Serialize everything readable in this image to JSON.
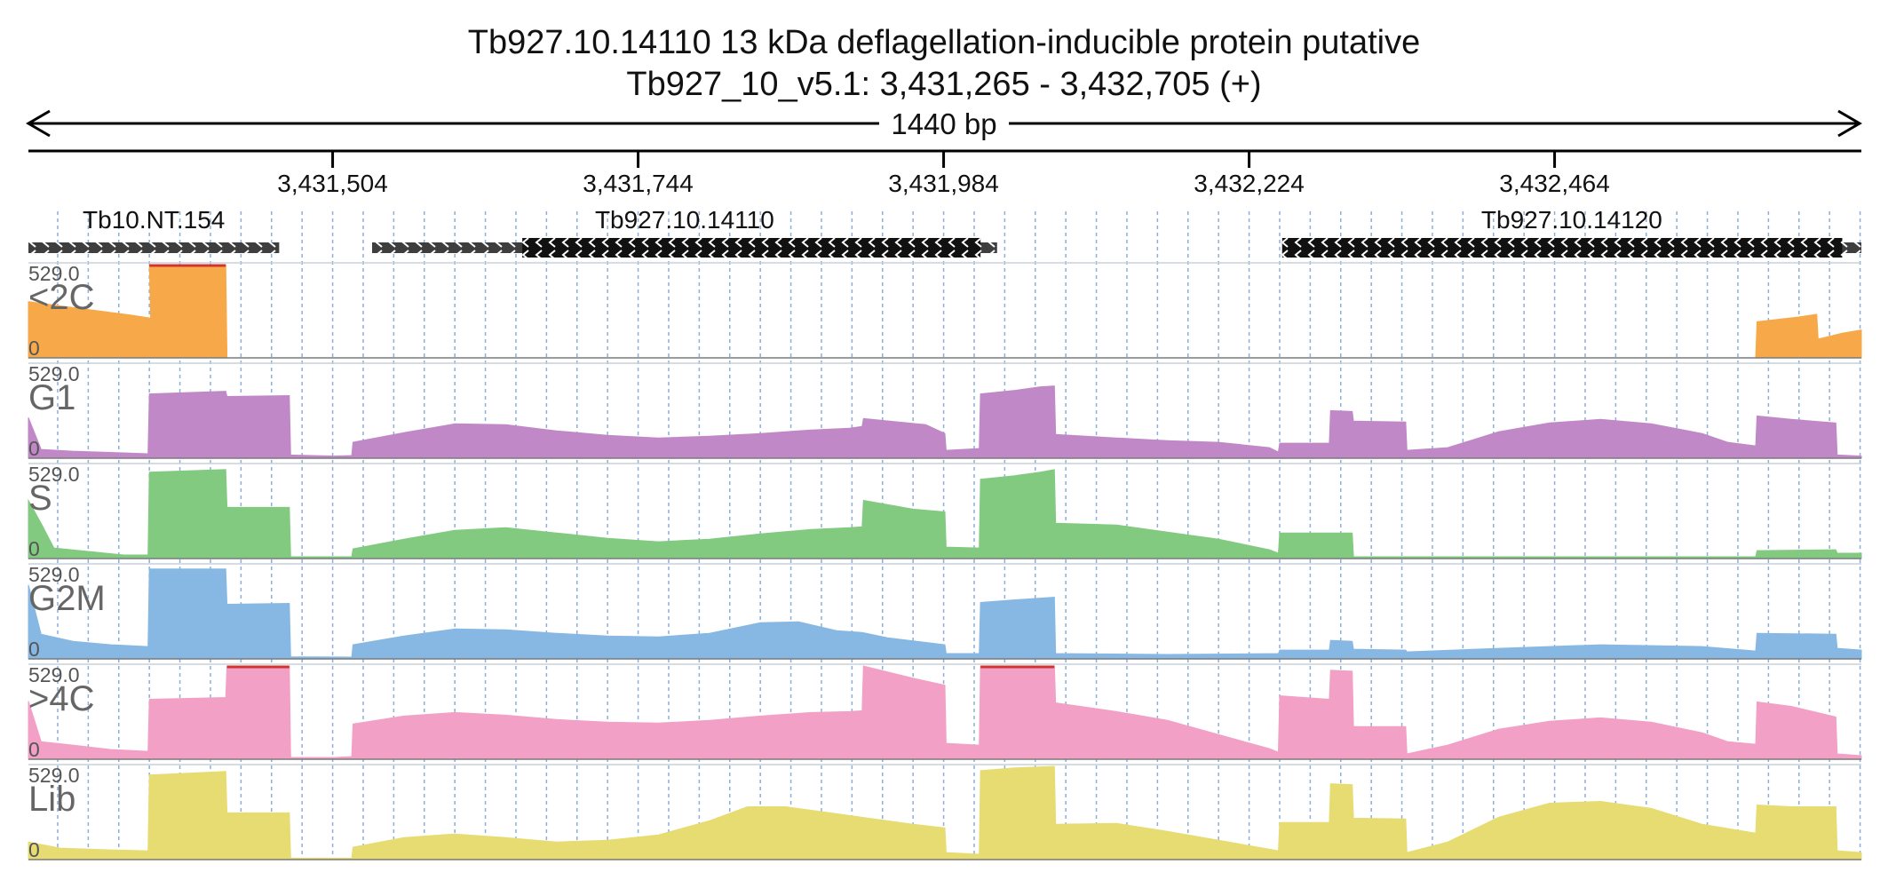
{
  "header": {
    "title": "Tb927.10.14110  13 kDa deflagellation-inducible protein  putative",
    "locus": "Tb927_10_v5.1: 3,431,265 - 3,432,705 (+)",
    "span_label": "1440 bp"
  },
  "chart_data": {
    "type": "area",
    "region": {
      "chromosome": "Tb927_10_v5.1",
      "start": 3431265,
      "end": 3432705,
      "strand": "+"
    },
    "xlim": [
      3431265,
      3432705
    ],
    "ruler_ticks": [
      {
        "position": 3431504,
        "label": "3,431,504"
      },
      {
        "position": 3431744,
        "label": "3,431,744"
      },
      {
        "position": 3431984,
        "label": "3,431,984"
      },
      {
        "position": 3432224,
        "label": "3,432,224"
      },
      {
        "position": 3432464,
        "label": "3,432,464"
      }
    ],
    "grid": true,
    "genes": [
      {
        "name": "Tb10.NT.154",
        "start": 3431265,
        "end": 3431462,
        "strand": "-",
        "thick": [],
        "style": "ncRNA"
      },
      {
        "name": "Tb927.10.14110",
        "start": 3431535,
        "end": 3432026,
        "strand": "-",
        "thick": [
          3431653,
          3432013
        ],
        "style": "coding"
      },
      {
        "name": "Tb927.10.14120",
        "start": 3432250,
        "end": 3432705,
        "strand": "-",
        "thick": [
          3432250,
          3432690
        ],
        "style": "coding"
      }
    ],
    "tracks": [
      {
        "name": "<2C",
        "color": "#f7a94a",
        "max_label": "529.0",
        "min_label": "0",
        "ylim": [
          0,
          529
        ],
        "points": [
          [
            3431265,
            319
          ],
          [
            3431285,
            300
          ],
          [
            3431305,
            281
          ],
          [
            3431325,
            262
          ],
          [
            3431345,
            243
          ],
          [
            3431361,
            225
          ],
          [
            3431360,
            529
          ],
          [
            3431420,
            529
          ],
          [
            3431421,
            0
          ],
          [
            3432622,
            0
          ],
          [
            3432623,
            205
          ],
          [
            3432655,
            231
          ],
          [
            3432670,
            247
          ],
          [
            3432671,
            107
          ],
          [
            3432690,
            140
          ],
          [
            3432705,
            158
          ]
        ]
      },
      {
        "name": "G1",
        "color": "#c188c8",
        "max_label": "529.0",
        "min_label": "0",
        "ylim": [
          0,
          529
        ],
        "points": [
          [
            3431265,
            230
          ],
          [
            3431275,
            50
          ],
          [
            3431300,
            40
          ],
          [
            3431340,
            30
          ],
          [
            3431359,
            25
          ],
          [
            3431360,
            365
          ],
          [
            3431420,
            380
          ],
          [
            3431421,
            350
          ],
          [
            3431470,
            355
          ],
          [
            3431471,
            18
          ],
          [
            3431505,
            12
          ],
          [
            3431519,
            15
          ],
          [
            3431520,
            90
          ],
          [
            3431560,
            145
          ],
          [
            3431600,
            195
          ],
          [
            3431640,
            190
          ],
          [
            3431680,
            155
          ],
          [
            3431720,
            130
          ],
          [
            3431760,
            115
          ],
          [
            3431800,
            125
          ],
          [
            3431840,
            140
          ],
          [
            3431880,
            160
          ],
          [
            3431910,
            170
          ],
          [
            3431920,
            180
          ],
          [
            3431921,
            225
          ],
          [
            3431970,
            190
          ],
          [
            3431985,
            140
          ],
          [
            3431986,
            45
          ],
          [
            3432012,
            55
          ],
          [
            3432013,
            365
          ],
          [
            3432040,
            385
          ],
          [
            3432060,
            405
          ],
          [
            3432071,
            410
          ],
          [
            3432072,
            135
          ],
          [
            3432120,
            115
          ],
          [
            3432160,
            100
          ],
          [
            3432200,
            90
          ],
          [
            3432240,
            60
          ],
          [
            3432247,
            35
          ],
          [
            3432248,
            85
          ],
          [
            3432287,
            85
          ],
          [
            3432288,
            270
          ],
          [
            3432305,
            265
          ],
          [
            3432306,
            210
          ],
          [
            3432347,
            205
          ],
          [
            3432348,
            45
          ],
          [
            3432380,
            60
          ],
          [
            3432420,
            150
          ],
          [
            3432460,
            200
          ],
          [
            3432500,
            220
          ],
          [
            3432540,
            195
          ],
          [
            3432580,
            140
          ],
          [
            3432600,
            90
          ],
          [
            3432622,
            70
          ],
          [
            3432623,
            240
          ],
          [
            3432650,
            220
          ],
          [
            3432685,
            200
          ],
          [
            3432686,
            18
          ],
          [
            3432705,
            12
          ]
        ]
      },
      {
        "name": "S",
        "color": "#82ca80",
        "max_label": "529.0",
        "min_label": "0",
        "ylim": [
          0,
          529
        ],
        "points": [
          [
            3431265,
            330
          ],
          [
            3431275,
            200
          ],
          [
            3431285,
            60
          ],
          [
            3431340,
            20
          ],
          [
            3431359,
            20
          ],
          [
            3431360,
            490
          ],
          [
            3431420,
            505
          ],
          [
            3431421,
            290
          ],
          [
            3431470,
            290
          ],
          [
            3431471,
            10
          ],
          [
            3431519,
            10
          ],
          [
            3431520,
            55
          ],
          [
            3431560,
            110
          ],
          [
            3431600,
            160
          ],
          [
            3431640,
            175
          ],
          [
            3431680,
            145
          ],
          [
            3431720,
            115
          ],
          [
            3431760,
            95
          ],
          [
            3431800,
            110
          ],
          [
            3431840,
            140
          ],
          [
            3431880,
            165
          ],
          [
            3431910,
            175
          ],
          [
            3431920,
            180
          ],
          [
            3431921,
            330
          ],
          [
            3431960,
            280
          ],
          [
            3431985,
            265
          ],
          [
            3431986,
            65
          ],
          [
            3432012,
            60
          ],
          [
            3432013,
            450
          ],
          [
            3432040,
            470
          ],
          [
            3432060,
            490
          ],
          [
            3432071,
            505
          ],
          [
            3432072,
            200
          ],
          [
            3432120,
            190
          ],
          [
            3432160,
            150
          ],
          [
            3432200,
            110
          ],
          [
            3432240,
            50
          ],
          [
            3432247,
            30
          ],
          [
            3432248,
            145
          ],
          [
            3432305,
            145
          ],
          [
            3432306,
            10
          ],
          [
            3432622,
            10
          ],
          [
            3432623,
            45
          ],
          [
            3432685,
            50
          ],
          [
            3432686,
            30
          ],
          [
            3432705,
            30
          ]
        ]
      },
      {
        "name": "G2M",
        "color": "#86b8e3",
        "max_label": "529.0",
        "min_label": "0",
        "ylim": [
          0,
          529
        ],
        "points": [
          [
            3431265,
            420
          ],
          [
            3431275,
            140
          ],
          [
            3431300,
            100
          ],
          [
            3431330,
            80
          ],
          [
            3431359,
            70
          ],
          [
            3431360,
            510
          ],
          [
            3431420,
            510
          ],
          [
            3431421,
            310
          ],
          [
            3431470,
            315
          ],
          [
            3431471,
            12
          ],
          [
            3431519,
            10
          ],
          [
            3431520,
            80
          ],
          [
            3431560,
            130
          ],
          [
            3431600,
            170
          ],
          [
            3431640,
            165
          ],
          [
            3431680,
            145
          ],
          [
            3431720,
            130
          ],
          [
            3431760,
            125
          ],
          [
            3431800,
            145
          ],
          [
            3431840,
            205
          ],
          [
            3431870,
            210
          ],
          [
            3431900,
            160
          ],
          [
            3431920,
            150
          ],
          [
            3431940,
            120
          ],
          [
            3431985,
            80
          ],
          [
            3431986,
            30
          ],
          [
            3432012,
            30
          ],
          [
            3432013,
            320
          ],
          [
            3432040,
            335
          ],
          [
            3432071,
            350
          ],
          [
            3432072,
            30
          ],
          [
            3432160,
            25
          ],
          [
            3432247,
            30
          ],
          [
            3432248,
            50
          ],
          [
            3432287,
            50
          ],
          [
            3432288,
            105
          ],
          [
            3432305,
            100
          ],
          [
            3432306,
            55
          ],
          [
            3432347,
            50
          ],
          [
            3432348,
            40
          ],
          [
            3432420,
            60
          ],
          [
            3432500,
            80
          ],
          [
            3432580,
            70
          ],
          [
            3432622,
            45
          ],
          [
            3432623,
            145
          ],
          [
            3432685,
            140
          ],
          [
            3432686,
            60
          ],
          [
            3432705,
            50
          ]
        ]
      },
      {
        "name": ">4C",
        "color": "#f2a0c6",
        "max_label": "529.0",
        "min_label": "0",
        "ylim": [
          0,
          529
        ],
        "points": [
          [
            3431265,
            330
          ],
          [
            3431275,
            100
          ],
          [
            3431300,
            80
          ],
          [
            3431330,
            55
          ],
          [
            3431359,
            45
          ],
          [
            3431360,
            340
          ],
          [
            3431420,
            350
          ],
          [
            3431421,
            529
          ],
          [
            3431470,
            529
          ],
          [
            3431471,
            10
          ],
          [
            3431505,
            10
          ],
          [
            3431519,
            15
          ],
          [
            3431520,
            200
          ],
          [
            3431560,
            245
          ],
          [
            3431600,
            265
          ],
          [
            3431640,
            250
          ],
          [
            3431680,
            225
          ],
          [
            3431720,
            210
          ],
          [
            3431760,
            205
          ],
          [
            3431800,
            220
          ],
          [
            3431840,
            245
          ],
          [
            3431880,
            265
          ],
          [
            3431910,
            270
          ],
          [
            3431920,
            275
          ],
          [
            3431921,
            529
          ],
          [
            3431960,
            460
          ],
          [
            3431985,
            420
          ],
          [
            3431986,
            90
          ],
          [
            3432012,
            80
          ],
          [
            3432013,
            529
          ],
          [
            3432071,
            529
          ],
          [
            3432072,
            320
          ],
          [
            3432120,
            270
          ],
          [
            3432160,
            220
          ],
          [
            3432200,
            140
          ],
          [
            3432240,
            60
          ],
          [
            3432247,
            40
          ],
          [
            3432248,
            360
          ],
          [
            3432287,
            340
          ],
          [
            3432288,
            505
          ],
          [
            3432305,
            500
          ],
          [
            3432306,
            185
          ],
          [
            3432347,
            185
          ],
          [
            3432348,
            30
          ],
          [
            3432380,
            80
          ],
          [
            3432420,
            170
          ],
          [
            3432460,
            215
          ],
          [
            3432500,
            235
          ],
          [
            3432540,
            210
          ],
          [
            3432580,
            150
          ],
          [
            3432600,
            100
          ],
          [
            3432622,
            85
          ],
          [
            3432623,
            325
          ],
          [
            3432650,
            300
          ],
          [
            3432685,
            240
          ],
          [
            3432686,
            30
          ],
          [
            3432705,
            20
          ]
        ]
      },
      {
        "name": "Lib",
        "color": "#e6dc72",
        "max_label": "529.0",
        "min_label": "0",
        "ylim": [
          0,
          529
        ],
        "points": [
          [
            3431265,
            100
          ],
          [
            3431290,
            65
          ],
          [
            3431330,
            55
          ],
          [
            3431359,
            50
          ],
          [
            3431360,
            480
          ],
          [
            3431420,
            500
          ],
          [
            3431421,
            265
          ],
          [
            3431470,
            265
          ],
          [
            3431471,
            8
          ],
          [
            3431519,
            8
          ],
          [
            3431520,
            70
          ],
          [
            3431560,
            125
          ],
          [
            3431600,
            145
          ],
          [
            3431640,
            125
          ],
          [
            3431680,
            100
          ],
          [
            3431720,
            110
          ],
          [
            3431760,
            140
          ],
          [
            3431800,
            220
          ],
          [
            3431830,
            300
          ],
          [
            3431860,
            300
          ],
          [
            3431900,
            260
          ],
          [
            3431920,
            240
          ],
          [
            3431960,
            200
          ],
          [
            3431985,
            180
          ],
          [
            3431986,
            40
          ],
          [
            3432012,
            30
          ],
          [
            3432013,
            505
          ],
          [
            3432040,
            520
          ],
          [
            3432071,
            529
          ],
          [
            3432072,
            200
          ],
          [
            3432120,
            205
          ],
          [
            3432160,
            160
          ],
          [
            3432200,
            110
          ],
          [
            3432247,
            50
          ],
          [
            3432248,
            210
          ],
          [
            3432287,
            210
          ],
          [
            3432288,
            430
          ],
          [
            3432305,
            425
          ],
          [
            3432306,
            235
          ],
          [
            3432347,
            230
          ],
          [
            3432348,
            40
          ],
          [
            3432380,
            100
          ],
          [
            3432420,
            240
          ],
          [
            3432460,
            320
          ],
          [
            3432500,
            330
          ],
          [
            3432540,
            290
          ],
          [
            3432580,
            200
          ],
          [
            3432622,
            150
          ],
          [
            3432623,
            310
          ],
          [
            3432650,
            300
          ],
          [
            3432685,
            300
          ],
          [
            3432686,
            50
          ],
          [
            3432705,
            40
          ]
        ]
      }
    ]
  }
}
